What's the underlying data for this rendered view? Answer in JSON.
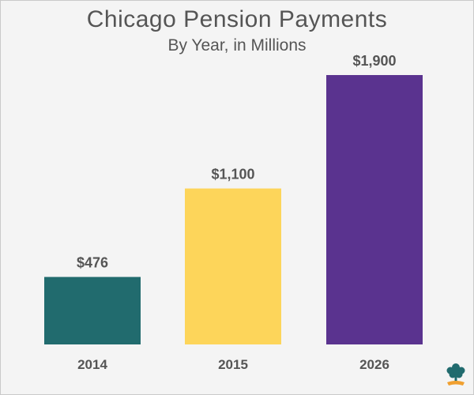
{
  "chart_data": {
    "type": "bar",
    "title": "Chicago Pension Payments",
    "subtitle": "By Year, in Millions",
    "categories": [
      "2014",
      "2015",
      "2026"
    ],
    "values": [
      476,
      1100,
      1900
    ],
    "value_labels": [
      "$476",
      "$1,100",
      "$1,900"
    ],
    "colors": [
      "#216b6e",
      "#fdd55a",
      "#5a338f"
    ],
    "ylim": [
      0,
      1900
    ],
    "xlabel": "",
    "ylabel": "",
    "grid": false,
    "legend": "none"
  },
  "logo": {
    "icon": "tree-icon",
    "tree_color": "#216b6e",
    "base_color": "#f0a030"
  }
}
